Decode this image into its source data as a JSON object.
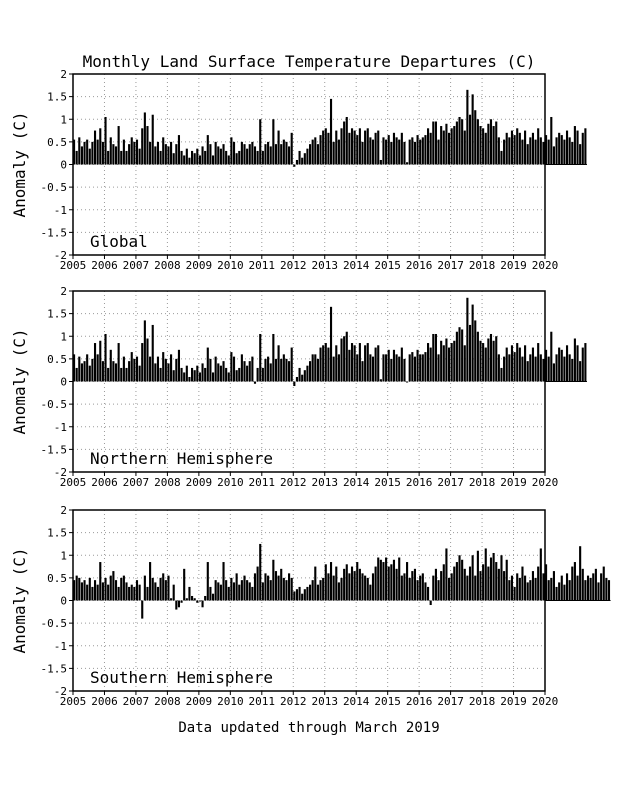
{
  "title": "Monthly Land Surface Temperature Departures (C)",
  "footer": "Data updated through March 2019",
  "chart_data": [
    {
      "type": "bar",
      "region": "Global",
      "ylabel": "Anomaly (C)",
      "ylim": [
        -2,
        2
      ],
      "yticks": [
        -2,
        -1.5,
        -1,
        -0.5,
        0,
        0.5,
        1,
        1.5,
        2
      ],
      "ytick_labels": [
        "-2",
        "-1.5",
        "-1",
        "-0.5",
        "0",
        "0.5",
        "1",
        "1.5",
        "2"
      ],
      "xlim": [
        2005,
        2020
      ],
      "xticks": [
        2005,
        2006,
        2007,
        2008,
        2009,
        2010,
        2011,
        2012,
        2013,
        2014,
        2015,
        2016,
        2017,
        2018,
        2019,
        2020
      ],
      "xtick_labels": [
        "2005",
        "2006",
        "2007",
        "2008",
        "2009",
        "2010",
        "2011",
        "2012",
        "2013",
        "2014",
        "2015",
        "2016",
        "2017",
        "2018",
        "2019",
        "2020"
      ],
      "grid": true,
      "start": "2005-01",
      "values": [
        0.55,
        0.3,
        0.6,
        0.4,
        0.5,
        0.55,
        0.35,
        0.5,
        0.75,
        0.55,
        0.8,
        0.5,
        1.05,
        0.3,
        0.6,
        0.45,
        0.4,
        0.85,
        0.3,
        0.55,
        0.3,
        0.45,
        0.6,
        0.5,
        0.55,
        0.35,
        0.8,
        1.15,
        0.85,
        0.5,
        1.1,
        0.4,
        0.5,
        0.3,
        0.6,
        0.45,
        0.4,
        0.5,
        0.25,
        0.45,
        0.65,
        0.3,
        0.2,
        0.35,
        0.15,
        0.3,
        0.25,
        0.35,
        0.2,
        0.4,
        0.3,
        0.65,
        0.45,
        0.2,
        0.5,
        0.4,
        0.35,
        0.45,
        0.3,
        0.2,
        0.6,
        0.5,
        0.25,
        0.3,
        0.5,
        0.45,
        0.35,
        0.45,
        0.5,
        0.4,
        0.3,
        1.0,
        0.3,
        0.45,
        0.5,
        0.4,
        1.0,
        0.45,
        0.75,
        0.45,
        0.55,
        0.5,
        0.4,
        0.7,
        -0.05,
        0.1,
        0.3,
        0.15,
        0.25,
        0.35,
        0.45,
        0.55,
        0.6,
        0.45,
        0.65,
        0.75,
        0.8,
        0.7,
        1.45,
        0.5,
        0.75,
        0.55,
        0.8,
        0.95,
        1.05,
        0.7,
        0.8,
        0.75,
        0.65,
        0.8,
        0.5,
        0.75,
        0.8,
        0.6,
        0.55,
        0.7,
        0.75,
        0.1,
        0.6,
        0.55,
        0.65,
        0.5,
        0.7,
        0.6,
        0.55,
        0.7,
        0.5,
        0.05,
        0.55,
        0.6,
        0.5,
        0.65,
        0.55,
        0.6,
        0.65,
        0.8,
        0.7,
        0.95,
        0.95,
        0.55,
        0.85,
        0.75,
        0.9,
        0.7,
        0.8,
        0.85,
        0.95,
        1.05,
        1.0,
        0.75,
        1.65,
        1.1,
        1.55,
        1.2,
        1.0,
        0.85,
        0.8,
        0.7,
        0.9,
        1.0,
        0.85,
        0.95,
        0.6,
        0.3,
        0.55,
        0.7,
        0.6,
        0.75,
        0.65,
        0.8,
        0.7,
        0.55,
        0.75,
        0.45,
        0.6,
        0.7,
        0.55,
        0.8,
        0.6,
        0.5,
        0.65,
        0.55,
        1.05,
        0.4,
        0.6,
        0.7,
        0.65,
        0.55,
        0.75,
        0.6,
        0.5,
        0.85,
        0.75,
        0.45,
        0.7,
        0.8
      ]
    },
    {
      "type": "bar",
      "region": "Northern Hemisphere",
      "ylabel": "Anomaly (C)",
      "ylim": [
        -2,
        2
      ],
      "yticks": [
        -2,
        -1.5,
        -1,
        -0.5,
        0,
        0.5,
        1,
        1.5,
        2
      ],
      "ytick_labels": [
        "-2",
        "-1.5",
        "-1",
        "-0.5",
        "0",
        "0.5",
        "1",
        "1.5",
        "2"
      ],
      "xlim": [
        2005,
        2020
      ],
      "xticks": [
        2005,
        2006,
        2007,
        2008,
        2009,
        2010,
        2011,
        2012,
        2013,
        2014,
        2015,
        2016,
        2017,
        2018,
        2019,
        2020
      ],
      "xtick_labels": [
        "2005",
        "2006",
        "2007",
        "2008",
        "2009",
        "2010",
        "2011",
        "2012",
        "2013",
        "2014",
        "2015",
        "2016",
        "2017",
        "2018",
        "2019",
        "2020"
      ],
      "grid": true,
      "start": "2005-01",
      "values": [
        0.6,
        0.3,
        0.55,
        0.4,
        0.45,
        0.6,
        0.35,
        0.5,
        0.85,
        0.6,
        0.9,
        0.45,
        1.05,
        0.3,
        0.7,
        0.45,
        0.4,
        0.85,
        0.3,
        0.55,
        0.3,
        0.45,
        0.65,
        0.5,
        0.55,
        0.35,
        0.85,
        1.35,
        0.95,
        0.55,
        1.25,
        0.4,
        0.55,
        0.3,
        0.65,
        0.5,
        0.4,
        0.6,
        0.25,
        0.5,
        0.7,
        0.3,
        0.2,
        0.35,
        0.1,
        0.3,
        0.25,
        0.35,
        0.2,
        0.4,
        0.3,
        0.75,
        0.5,
        0.2,
        0.55,
        0.4,
        0.35,
        0.45,
        0.3,
        0.2,
        0.65,
        0.55,
        0.25,
        0.3,
        0.6,
        0.45,
        0.35,
        0.45,
        0.55,
        -0.05,
        0.3,
        1.05,
        0.3,
        0.5,
        0.55,
        0.4,
        1.05,
        0.5,
        0.8,
        0.5,
        0.6,
        0.5,
        0.45,
        0.75,
        -0.1,
        0.1,
        0.3,
        0.15,
        0.25,
        0.35,
        0.45,
        0.6,
        0.6,
        0.5,
        0.75,
        0.8,
        0.85,
        0.75,
        1.65,
        0.55,
        0.8,
        0.6,
        0.95,
        1.0,
        1.1,
        0.7,
        0.85,
        0.8,
        0.6,
        0.85,
        0.45,
        0.8,
        0.85,
        0.6,
        0.55,
        0.75,
        0.8,
        0.05,
        0.6,
        0.6,
        0.7,
        0.5,
        0.7,
        0.6,
        0.55,
        0.75,
        0.5,
        0.0,
        0.6,
        0.65,
        0.55,
        0.7,
        0.6,
        0.6,
        0.65,
        0.85,
        0.75,
        1.05,
        1.05,
        0.6,
        0.9,
        0.8,
        0.95,
        0.75,
        0.85,
        0.9,
        1.1,
        1.2,
        1.15,
        0.8,
        1.85,
        1.25,
        1.7,
        1.35,
        1.1,
        0.9,
        0.85,
        0.75,
        0.95,
        1.05,
        0.9,
        1.0,
        0.6,
        0.3,
        0.55,
        0.75,
        0.6,
        0.8,
        0.65,
        0.85,
        0.75,
        0.55,
        0.8,
        0.45,
        0.6,
        0.75,
        0.55,
        0.85,
        0.6,
        0.5,
        0.7,
        0.55,
        1.1,
        0.4,
        0.6,
        0.75,
        0.7,
        0.55,
        0.8,
        0.6,
        0.5,
        0.95,
        0.8,
        0.45,
        0.75,
        0.85
      ]
    },
    {
      "type": "bar",
      "region": "Southern Hemisphere",
      "ylabel": "Anomaly (C)",
      "ylim": [
        -2,
        2
      ],
      "yticks": [
        -2,
        -1.5,
        -1,
        -0.5,
        0,
        0.5,
        1,
        1.5,
        2
      ],
      "ytick_labels": [
        "-2",
        "-1.5",
        "-1",
        "-0.5",
        "0",
        "0.5",
        "1",
        "1.5",
        "2"
      ],
      "xlim": [
        2005,
        2020
      ],
      "xticks": [
        2005,
        2006,
        2007,
        2008,
        2009,
        2010,
        2011,
        2012,
        2013,
        2014,
        2015,
        2016,
        2017,
        2018,
        2019,
        2020
      ],
      "xtick_labels": [
        "2005",
        "2006",
        "2007",
        "2008",
        "2009",
        "2010",
        "2011",
        "2012",
        "2013",
        "2014",
        "2015",
        "2016",
        "2017",
        "2018",
        "2019",
        "2020"
      ],
      "grid": true,
      "start": "2005-01",
      "values": [
        0.45,
        0.55,
        0.5,
        0.4,
        0.45,
        0.35,
        0.5,
        0.3,
        0.45,
        0.35,
        0.85,
        0.4,
        0.5,
        0.35,
        0.55,
        0.65,
        0.45,
        0.3,
        0.5,
        0.55,
        0.4,
        0.3,
        0.35,
        0.3,
        0.45,
        0.35,
        -0.4,
        0.55,
        0.3,
        0.85,
        0.5,
        0.4,
        0.3,
        0.5,
        0.6,
        0.45,
        0.55,
        0.05,
        0.35,
        -0.2,
        -0.15,
        -0.05,
        0.7,
        0.05,
        0.3,
        0.1,
        0.05,
        -0.05,
        0.0,
        -0.15,
        0.1,
        0.85,
        0.3,
        0.15,
        0.45,
        0.4,
        0.35,
        0.85,
        0.45,
        0.3,
        0.5,
        0.4,
        0.6,
        0.35,
        0.45,
        0.55,
        0.45,
        0.4,
        0.3,
        0.6,
        0.75,
        1.25,
        0.4,
        0.6,
        0.55,
        0.45,
        0.9,
        0.65,
        0.55,
        0.7,
        0.5,
        0.45,
        0.6,
        0.5,
        0.2,
        0.25,
        0.3,
        0.15,
        0.25,
        0.3,
        0.35,
        0.45,
        0.75,
        0.35,
        0.45,
        0.5,
        0.8,
        0.6,
        0.85,
        0.55,
        0.75,
        0.4,
        0.5,
        0.7,
        0.8,
        0.6,
        0.75,
        0.65,
        0.85,
        0.7,
        0.6,
        0.55,
        0.5,
        0.35,
        0.6,
        0.75,
        0.95,
        0.9,
        0.85,
        0.95,
        0.75,
        0.8,
        0.9,
        0.7,
        0.95,
        0.55,
        0.6,
        0.85,
        0.5,
        0.65,
        0.7,
        0.45,
        0.55,
        0.6,
        0.4,
        0.3,
        -0.1,
        0.55,
        0.7,
        0.45,
        0.65,
        0.8,
        1.15,
        0.5,
        0.6,
        0.75,
        0.85,
        1.0,
        0.9,
        0.7,
        0.55,
        0.75,
        1.0,
        0.55,
        1.1,
        0.65,
        0.8,
        1.15,
        0.75,
        0.95,
        1.05,
        0.85,
        0.7,
        1.0,
        0.65,
        0.9,
        0.45,
        0.55,
        0.3,
        0.6,
        0.5,
        0.75,
        0.55,
        0.4,
        0.45,
        0.65,
        0.5,
        0.75,
        1.15,
        0.6,
        0.8,
        0.45,
        0.5,
        0.65,
        0.3,
        0.4,
        0.55,
        0.35,
        0.6,
        0.45,
        0.75,
        0.85,
        0.55,
        1.2,
        0.7,
        0.45,
        0.55,
        0.5,
        0.6,
        0.7,
        0.4,
        0.6,
        0.75,
        0.5,
        0.45
      ]
    }
  ]
}
